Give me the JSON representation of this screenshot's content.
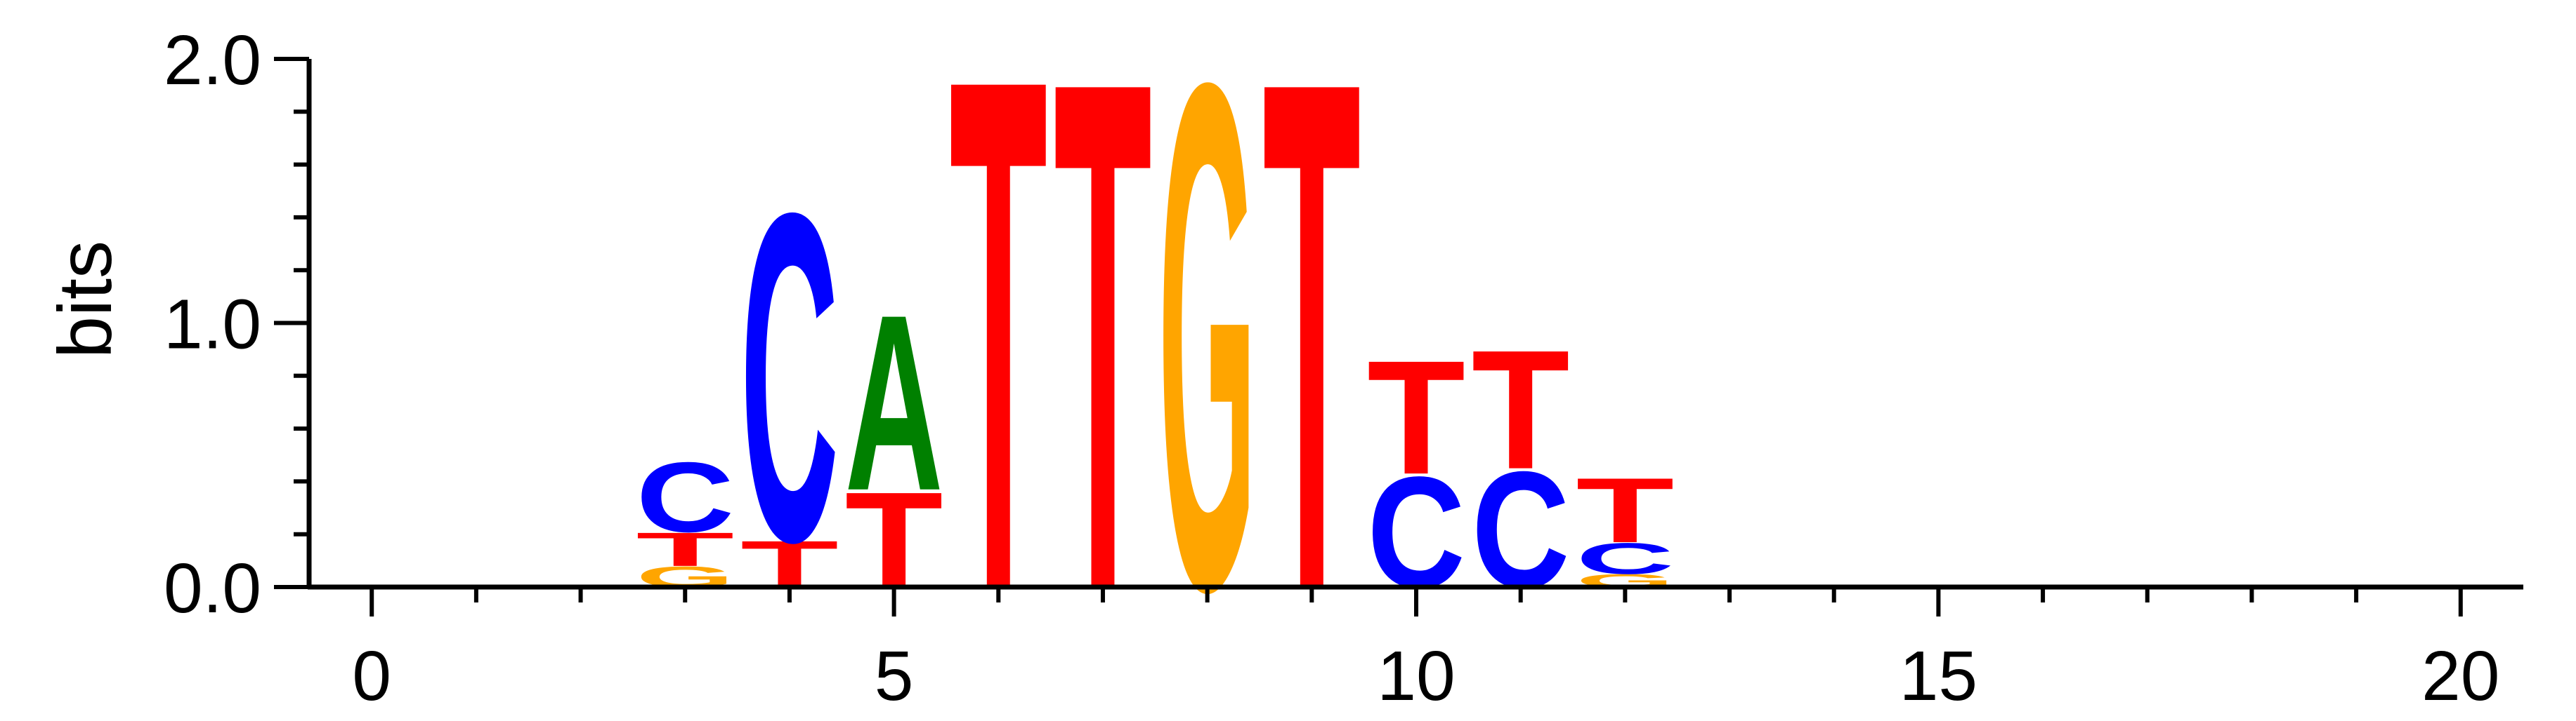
{
  "chart_data": {
    "type": "sequence-logo",
    "ylabel": "bits",
    "xlabel": "",
    "title": "",
    "xlim": [
      -0.6,
      20.6
    ],
    "ylim": [
      0,
      2.0
    ],
    "x_ticks": [
      0,
      5,
      10,
      15,
      20
    ],
    "y_ticks": [
      0.0,
      1.0,
      2.0
    ],
    "y_tick_labels": [
      "0.0",
      "1.0",
      "2.0"
    ],
    "colors": {
      "A": "#008000",
      "C": "#0000ff",
      "G": "#ffa500",
      "T": "#ff0000"
    },
    "positions": [
      {
        "position": 3,
        "stack": [
          {
            "letter": "G",
            "bits": 0.08
          },
          {
            "letter": "T",
            "bits": 0.13
          },
          {
            "letter": "C",
            "bits": 0.27
          }
        ]
      },
      {
        "position": 4,
        "stack": [
          {
            "letter": "T",
            "bits": 0.18
          },
          {
            "letter": "C",
            "bits": 1.27
          }
        ]
      },
      {
        "position": 5,
        "stack": [
          {
            "letter": "T",
            "bits": 0.37
          },
          {
            "letter": "A",
            "bits": 0.68
          }
        ]
      },
      {
        "position": 6,
        "stack": [
          {
            "letter": "T",
            "bits": 1.98
          }
        ]
      },
      {
        "position": 7,
        "stack": [
          {
            "letter": "T",
            "bits": 1.97
          }
        ]
      },
      {
        "position": 8,
        "stack": [
          {
            "letter": "G",
            "bits": 1.96
          }
        ]
      },
      {
        "position": 9,
        "stack": [
          {
            "letter": "T",
            "bits": 1.97
          }
        ]
      },
      {
        "position": 10,
        "stack": [
          {
            "letter": "C",
            "bits": 0.43
          },
          {
            "letter": "T",
            "bits": 0.44
          }
        ]
      },
      {
        "position": 11,
        "stack": [
          {
            "letter": "C",
            "bits": 0.45
          },
          {
            "letter": "T",
            "bits": 0.46
          }
        ]
      },
      {
        "position": 12,
        "stack": [
          {
            "letter": "G",
            "bits": 0.05
          },
          {
            "letter": "C",
            "bits": 0.12
          },
          {
            "letter": "T",
            "bits": 0.25
          }
        ]
      }
    ]
  }
}
